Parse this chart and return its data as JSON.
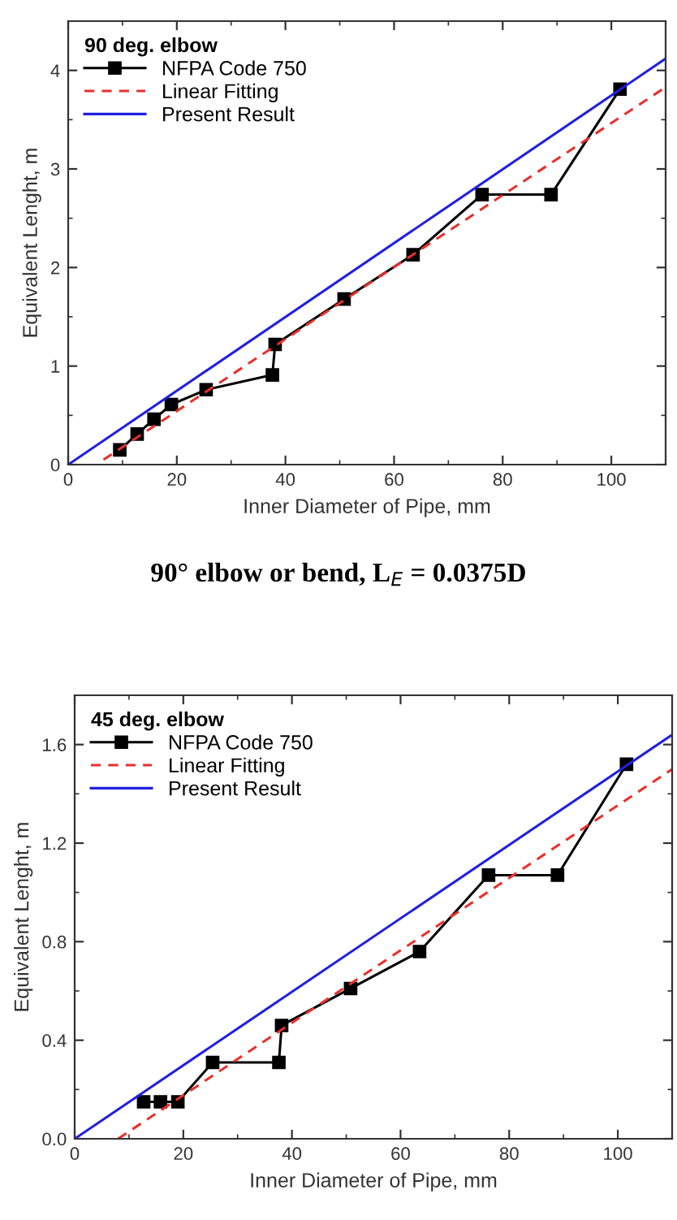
{
  "chart_data": [
    {
      "type": "line",
      "legend_title": "90 deg. elbow",
      "xlabel": "Inner Diameter of Pipe, mm",
      "ylabel": "Equivalent Lenght, m",
      "xlim": [
        0,
        110
      ],
      "xticks": [
        0,
        20,
        40,
        60,
        80,
        100
      ],
      "ylim": [
        0,
        4.5
      ],
      "yticks": [
        0,
        1,
        2,
        3,
        4
      ],
      "legend": "top left",
      "grid": false,
      "annotations": [
        "90° elbow or bend, L$_{E}$ = 0.0375D"
      ],
      "series": [
        {
          "name": "NFPA Code 750",
          "color": "#000000",
          "marker": "square",
          "line_style": "solid",
          "x": [
            9.5,
            12.7,
            15.8,
            19,
            25.4,
            37.6,
            38.1,
            50.8,
            63.5,
            76.2,
            88.9,
            101.6
          ],
          "values": [
            0.15,
            0.31,
            0.46,
            0.61,
            0.76,
            0.91,
            1.22,
            1.68,
            2.13,
            2.74,
            2.74,
            3.81
          ]
        },
        {
          "name": "Linear Fitting",
          "color": "#e8302c",
          "marker": "none",
          "line_style": "dashed",
          "x": [
            6.5,
            110
          ],
          "values": [
            0.05,
            3.83
          ]
        },
        {
          "name": "Present Result",
          "color": "#2020e0",
          "marker": "none",
          "line_style": "solid",
          "x": [
            0,
            110
          ],
          "values": [
            0,
            4.12
          ]
        }
      ]
    },
    {
      "type": "line",
      "legend_title": "45 deg. elbow",
      "xlabel": "Inner Diameter of Pipe, mm",
      "ylabel": "Equivalent Lenght, m",
      "xlim": [
        0,
        110
      ],
      "xticks": [
        0,
        20,
        40,
        60,
        80,
        100
      ],
      "ylim": [
        0,
        1.8
      ],
      "yticks": [
        {
          "value": 0,
          "label": "0.0"
        },
        0.4,
        0.8,
        1.2,
        1.6
      ],
      "legend": "top left",
      "grid": false,
      "series": [
        {
          "name": "NFPA Code 750",
          "color": "#000000",
          "marker": "square",
          "line_style": "solid",
          "x": [
            12.7,
            15.8,
            19,
            25.4,
            37.6,
            38.1,
            50.8,
            63.5,
            76.2,
            88.9,
            101.6
          ],
          "values": [
            0.15,
            0.15,
            0.15,
            0.31,
            0.31,
            0.46,
            0.61,
            0.76,
            1.07,
            1.07,
            1.52
          ]
        },
        {
          "name": "Linear Fitting",
          "color": "#e8302c",
          "marker": "none",
          "line_style": "dashed",
          "x": [
            8,
            110
          ],
          "values": [
            0,
            1.5
          ]
        },
        {
          "name": "Present Result",
          "color": "#2020e0",
          "marker": "none",
          "line_style": "solid",
          "x": [
            0,
            110
          ],
          "values": [
            0,
            1.64
          ]
        }
      ]
    }
  ]
}
